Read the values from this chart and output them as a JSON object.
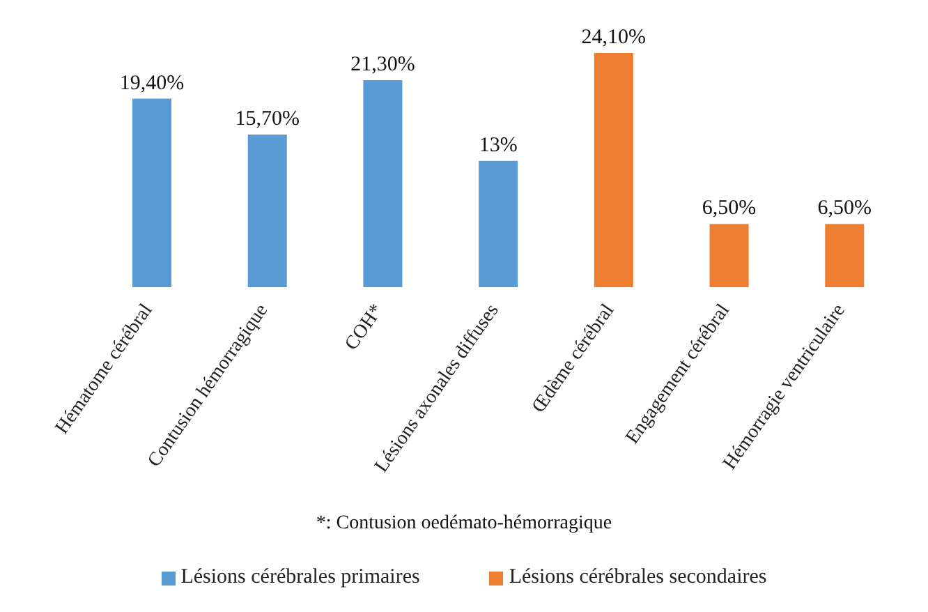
{
  "chart_data": {
    "type": "bar",
    "categories": [
      "Hématome cérébral",
      "Contusion hémorragique",
      "COH*",
      "Lésions axonales diffuses",
      "Œdème cérébral",
      "Engagement cérébral",
      "Hémorragie ventriculaire"
    ],
    "series": [
      {
        "name": "Lésions cérébrales primaires",
        "color": "#5b9bd5",
        "values": [
          19.4,
          15.7,
          21.3,
          13,
          null,
          null,
          null
        ],
        "value_labels": [
          "19,40%",
          "15,70%",
          "21,30%",
          "13%",
          null,
          null,
          null
        ]
      },
      {
        "name": "Lésions cérébrales secondaires",
        "color": "#ed7d31",
        "values": [
          null,
          null,
          null,
          null,
          24.1,
          6.5,
          6.5
        ],
        "value_labels": [
          null,
          null,
          null,
          null,
          "24,10%",
          "6,50%",
          "6,50%"
        ]
      }
    ],
    "stacked": true,
    "legend": "bottom",
    "grid": false,
    "annotations": [
      "*: Contusion oedémato-hémorragique"
    ]
  }
}
